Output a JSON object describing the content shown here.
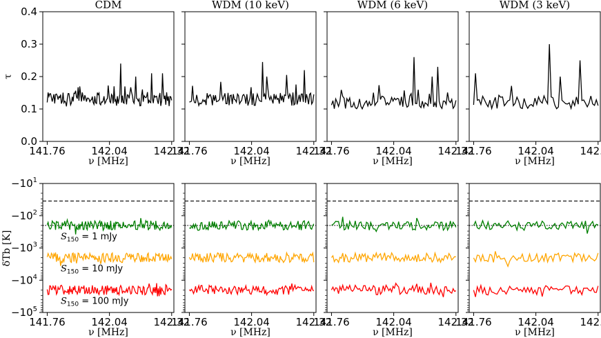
{
  "x_range_mhz": [
    141.74,
    142.33
  ],
  "x_ticks": [
    "141.76",
    "142.04",
    "142.32"
  ],
  "x_axis_label": "ν [MHz]",
  "top_ylabel": "τ",
  "bottom_ylabel": "δTb [K]",
  "top_yticks": [
    {
      "value": 0.0,
      "label": "0.0"
    },
    {
      "value": 0.1,
      "label": "0.1"
    },
    {
      "value": 0.2,
      "label": "0.2"
    },
    {
      "value": 0.3,
      "label": "0.3"
    },
    {
      "value": 0.4,
      "label": "0.4"
    }
  ],
  "bottom_yticks": [
    {
      "exp": 1,
      "label": "−10",
      "sup": "1"
    },
    {
      "exp": 2,
      "label": "−10",
      "sup": "2"
    },
    {
      "exp": 3,
      "label": "−10",
      "sup": "3"
    },
    {
      "exp": 4,
      "label": "−10",
      "sup": "4"
    },
    {
      "exp": 5,
      "label": "−10",
      "sup": "5"
    }
  ],
  "colors": {
    "s1": "#008000",
    "s10": "#ffa500",
    "s100": "#ff0000",
    "tau": "#000000"
  },
  "annotations": [
    {
      "prefix": "S",
      "sub": "150",
      "text": " = 1 mJy"
    },
    {
      "prefix": "S",
      "sub": "150",
      "text": " = 10 mJy"
    },
    {
      "prefix": "S",
      "sub": "150",
      "text": " = 100 mJy"
    }
  ],
  "chart_data": [
    {
      "type": "line",
      "panel": "tau",
      "title": "CDM",
      "xlim": [
        141.74,
        142.33
      ],
      "ylim": [
        0,
        0.4
      ],
      "n_points": 150,
      "tau_mean": 0.13,
      "tau_noise": 0.022,
      "spikes": [
        [
          142.09,
          0.24
        ],
        [
          142.23,
          0.21
        ],
        [
          142.28,
          0.21
        ],
        [
          142.16,
          0.2
        ]
      ]
    },
    {
      "type": "line",
      "panel": "tau",
      "title": "WDM (10 keV)",
      "xlim": [
        141.74,
        142.33
      ],
      "ylim": [
        0,
        0.4
      ],
      "n_points": 120,
      "tau_mean": 0.13,
      "tau_noise": 0.02,
      "spikes": [
        [
          142.09,
          0.245
        ],
        [
          142.28,
          0.22
        ],
        [
          142.2,
          0.205
        ],
        [
          142.11,
          0.2
        ]
      ]
    },
    {
      "type": "line",
      "panel": "tau",
      "title": "WDM (6 keV)",
      "xlim": [
        141.74,
        142.33
      ],
      "ylim": [
        0,
        0.4
      ],
      "n_points": 90,
      "tau_mean": 0.12,
      "tau_noise": 0.02,
      "spikes": [
        [
          142.13,
          0.26
        ],
        [
          142.24,
          0.23
        ],
        [
          142.21,
          0.2
        ]
      ]
    },
    {
      "type": "line",
      "panel": "tau",
      "title": "WDM (3 keV)",
      "xlim": [
        141.74,
        142.33
      ],
      "ylim": [
        0,
        0.4
      ],
      "n_points": 70,
      "tau_mean": 0.12,
      "tau_noise": 0.02,
      "spikes": [
        [
          142.1,
          0.3
        ],
        [
          141.77,
          0.21
        ],
        [
          142.24,
          0.25
        ],
        [
          142.15,
          0.2
        ]
      ]
    },
    {
      "type": "line",
      "panel": "dTb",
      "title": "CDM",
      "log_scale": true,
      "ylim": [
        -10,
        -100000
      ],
      "dashed_line": -35,
      "dotted_line": -200,
      "series": [
        {
          "name": "S150 = 1 mJy",
          "center": -200
        },
        {
          "name": "S150 = 10 mJy",
          "center": -2000
        },
        {
          "name": "S150 = 100 mJy",
          "center": -20000
        }
      ]
    },
    {
      "type": "line",
      "panel": "dTb",
      "title": "WDM (10 keV)",
      "log_scale": true,
      "ylim": [
        -10,
        -100000
      ],
      "dashed_line": -35,
      "dotted_line": -200,
      "series": [
        {
          "name": "S150 = 1 mJy",
          "center": -200
        },
        {
          "name": "S150 = 10 mJy",
          "center": -2000
        },
        {
          "name": "S150 = 100 mJy",
          "center": -20000
        }
      ]
    },
    {
      "type": "line",
      "panel": "dTb",
      "title": "WDM (6 keV)",
      "log_scale": true,
      "ylim": [
        -10,
        -100000
      ],
      "dashed_line": -35,
      "dotted_line": -200,
      "series": [
        {
          "name": "S150 = 1 mJy",
          "center": -200
        },
        {
          "name": "S150 = 10 mJy",
          "center": -2000
        },
        {
          "name": "S150 = 100 mJy",
          "center": -20000
        }
      ]
    },
    {
      "type": "line",
      "panel": "dTb",
      "title": "WDM (3 keV)",
      "log_scale": true,
      "ylim": [
        -10,
        -100000
      ],
      "dashed_line": -35,
      "dotted_line": -200,
      "series": [
        {
          "name": "S150 = 1 mJy",
          "center": -200
        },
        {
          "name": "S150 = 10 mJy",
          "center": -2000
        },
        {
          "name": "S150 = 100 mJy",
          "center": -20000
        }
      ]
    }
  ]
}
